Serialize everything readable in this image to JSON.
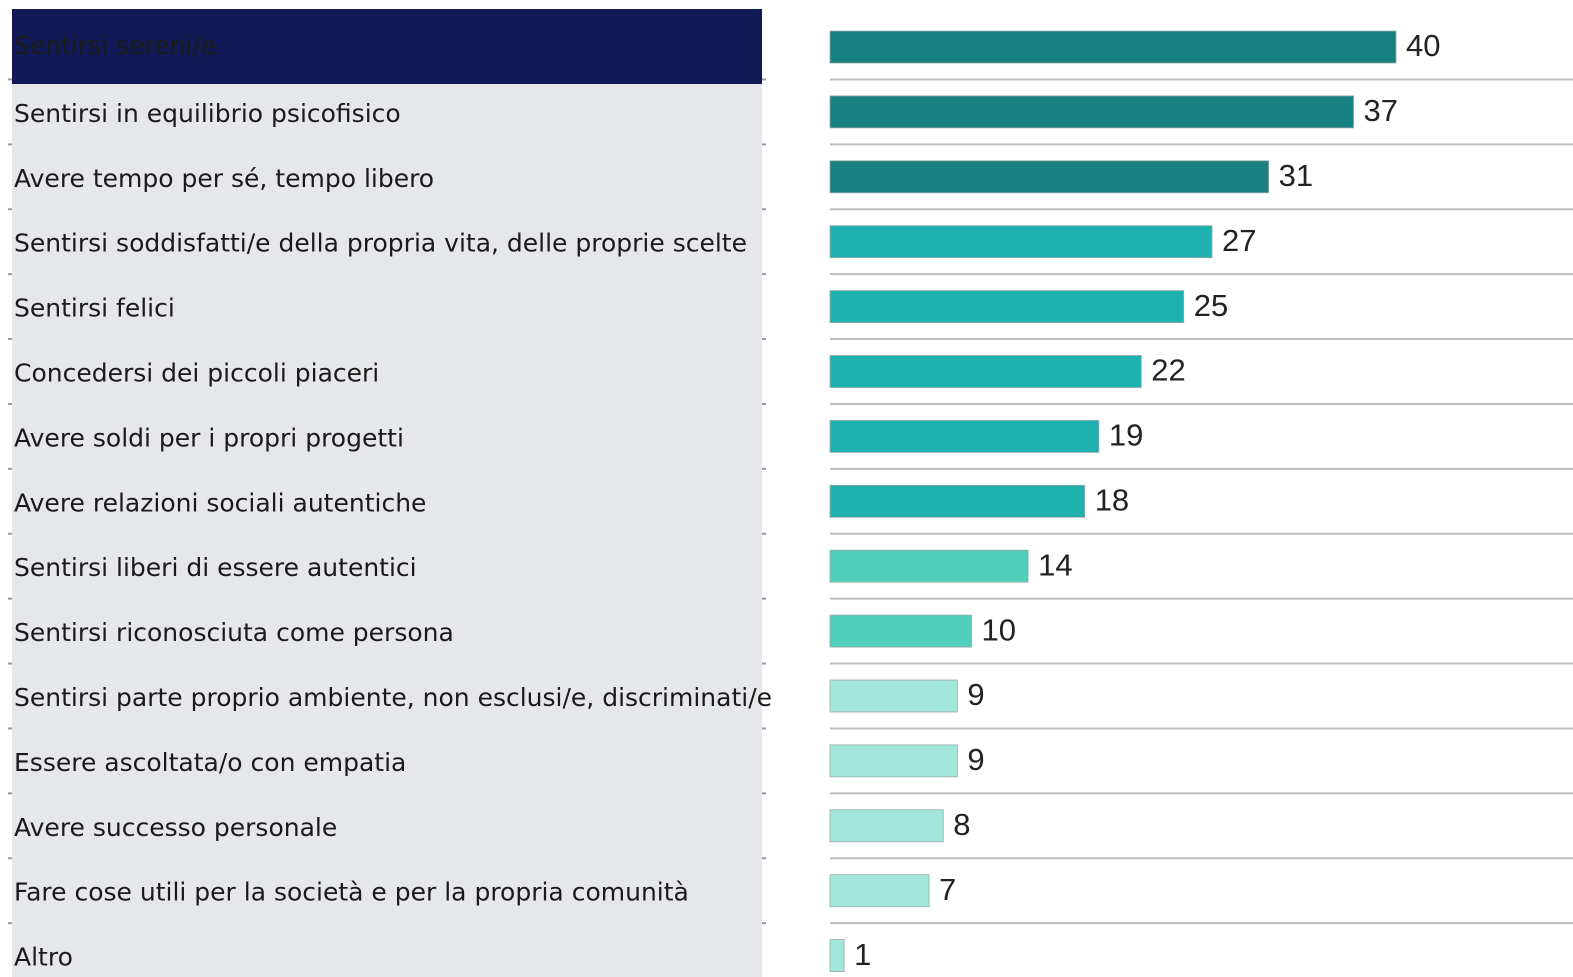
{
  "chart_data": {
    "type": "bar",
    "orientation": "horizontal",
    "categories": [
      "Sentirsi sereni/e",
      "Sentirsi in equilibrio psicofisico",
      "Avere tempo per sé, tempo libero",
      "Sentirsi soddisfatti/e della propria vita, delle proprie scelte",
      "Sentirsi felici",
      "Concedersi dei piccoli piaceri",
      "Avere soldi per i propri progetti",
      "Avere relazioni sociali autentiche",
      "Sentirsi liberi di essere autentici",
      "Sentirsi riconosciuta come persona",
      "Sentirsi parte proprio ambiente, non esclusi/e, discriminati/e",
      "Essere ascoltata/o con empatia",
      "Avere successo personale",
      "Fare cose utili per la società e per la propria comunità",
      "Altro"
    ],
    "values": [
      40,
      37,
      31,
      27,
      25,
      22,
      19,
      18,
      14,
      10,
      9,
      9,
      8,
      7,
      1
    ],
    "colors": [
      "#168180",
      "#168180",
      "#168180",
      "#1fb0b0",
      "#1fb0b0",
      "#1fb0b0",
      "#1fb0b0",
      "#1fb0b0",
      "#50d0bb",
      "#50d0bb",
      "#a3e6dc",
      "#a3e6dc",
      "#a3e6dc",
      "#a3e6dc",
      "#a3e6dc"
    ],
    "selected_index": 0
  }
}
